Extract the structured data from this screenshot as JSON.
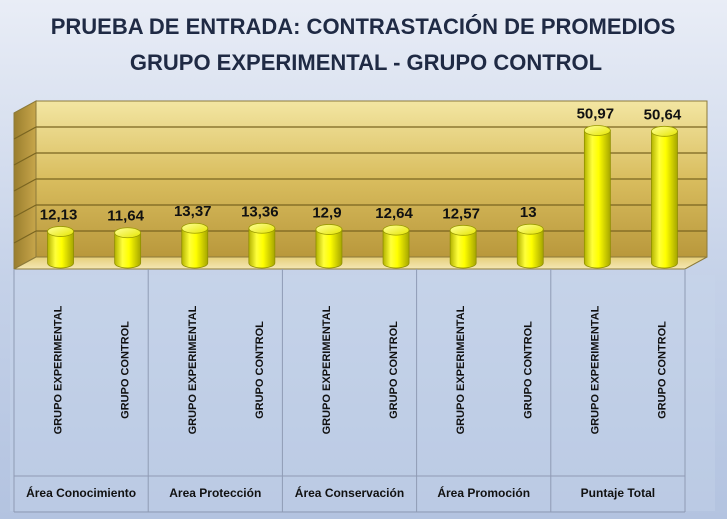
{
  "chart_data": {
    "type": "bar",
    "title": "PRUEBA DE ENTRADA: CONTRASTACIÓN DE PROMEDIOS",
    "subtitle": "GRUPO EXPERIMENTAL - GRUPO CONTROL",
    "xlabel": "",
    "ylabel": "",
    "ylim": [
      0,
      60
    ],
    "grid": true,
    "legend": "none",
    "bar_color": "#FFFF00",
    "groups": [
      {
        "label": "Área Conocimiento",
        "bars": [
          {
            "category": "GRUPO EXPERIMENTAL",
            "value": 12.13,
            "value_label": "12,13"
          },
          {
            "category": "GRUPO CONTROL",
            "value": 11.64,
            "value_label": "11,64"
          }
        ]
      },
      {
        "label": "Area Protección",
        "bars": [
          {
            "category": "GRUPO EXPERIMENTAL",
            "value": 13.37,
            "value_label": "13,37"
          },
          {
            "category": "GRUPO CONTROL",
            "value": 13.36,
            "value_label": "13,36"
          }
        ]
      },
      {
        "label": "Área Conservación",
        "bars": [
          {
            "category": "GRUPO EXPERIMENTAL",
            "value": 12.9,
            "value_label": "12,9"
          },
          {
            "category": "GRUPO CONTROL",
            "value": 12.64,
            "value_label": "12,64"
          }
        ]
      },
      {
        "label": "Área Promoción",
        "bars": [
          {
            "category": "GRUPO EXPERIMENTAL",
            "value": 12.57,
            "value_label": "12,57"
          },
          {
            "category": "GRUPO CONTROL",
            "value": 13,
            "value_label": "13"
          }
        ]
      },
      {
        "label": "Puntaje Total",
        "bars": [
          {
            "category": "GRUPO EXPERIMENTAL",
            "value": 50.97,
            "value_label": "50,97"
          },
          {
            "category": "GRUPO CONTROL",
            "value": 50.64,
            "value_label": "50,64"
          }
        ]
      }
    ]
  }
}
